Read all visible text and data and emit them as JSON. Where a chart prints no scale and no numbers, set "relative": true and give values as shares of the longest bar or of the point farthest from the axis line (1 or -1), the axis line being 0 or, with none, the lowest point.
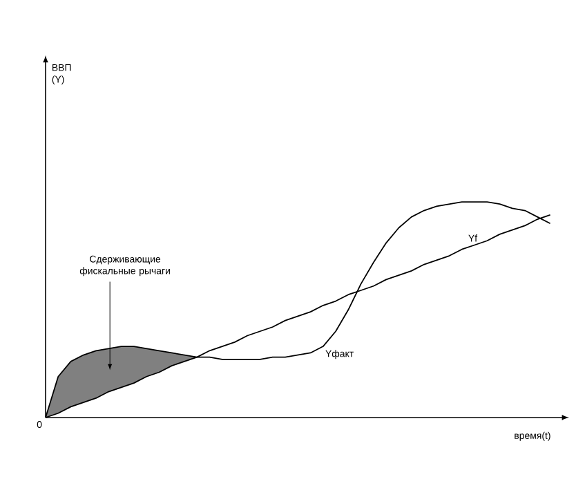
{
  "chart_data": {
    "type": "line",
    "relative": true,
    "xlabel": "время(t)",
    "categories": [
      null,
      null,
      null,
      null,
      null,
      null,
      null,
      null,
      null,
      null,
      null,
      null,
      null,
      null,
      null,
      null,
      null,
      null,
      null,
      null,
      null,
      null,
      null,
      null,
      null,
      null,
      null,
      null,
      null,
      null,
      null,
      null,
      null,
      null,
      null,
      null,
      null,
      null,
      null,
      null,
      null
    ],
    "series": [
      {
        "name": "Yf",
        "color": "#000000",
        "values": [
          0,
          0.02,
          0.05,
          0.07,
          0.09,
          0.12,
          0.14,
          0.16,
          0.19,
          0.21,
          0.24,
          0.26,
          0.28,
          0.31,
          0.33,
          0.35,
          0.38,
          0.4,
          0.42,
          0.45,
          0.47,
          0.49,
          0.52,
          0.54,
          0.57,
          0.59,
          0.61,
          0.64,
          0.66,
          0.68,
          0.71,
          0.73,
          0.75,
          0.78,
          0.8,
          0.82,
          0.85,
          0.87,
          0.89,
          0.92,
          0.94
        ]
      },
      {
        "name": "Yфакт",
        "color": "#000000",
        "values": [
          0,
          0.19,
          0.26,
          0.29,
          0.31,
          0.32,
          0.33,
          0.33,
          0.32,
          0.31,
          0.3,
          0.29,
          0.28,
          0.28,
          0.27,
          0.27,
          0.27,
          0.27,
          0.28,
          0.28,
          0.29,
          0.3,
          0.33,
          0.4,
          0.5,
          0.62,
          0.72,
          0.81,
          0.88,
          0.93,
          0.96,
          0.98,
          0.99,
          1.0,
          1.0,
          1.0,
          0.99,
          0.97,
          0.96,
          0.93,
          0.9
        ],
        "lower": [
          0,
          0.02,
          0.05,
          0.07,
          0.09,
          0.12,
          0.14,
          0.16,
          0.19,
          0.21,
          0.24,
          0.26,
          0.28,
          null,
          null,
          null,
          null,
          null,
          null,
          null,
          null,
          null,
          null,
          null,
          null,
          null,
          null,
          null,
          null,
          null,
          null,
          null,
          null,
          null,
          null,
          null,
          null,
          null,
          null,
          null,
          null
        ],
        "upper": [
          0,
          0.19,
          0.26,
          0.29,
          0.31,
          0.32,
          0.33,
          0.33,
          0.32,
          0.31,
          0.3,
          0.29,
          0.28,
          null,
          null,
          null,
          null,
          null,
          null,
          null,
          null,
          null,
          null,
          null,
          null,
          null,
          null,
          null,
          null,
          null,
          null,
          null,
          null,
          null,
          null,
          null,
          null,
          null,
          null,
          null,
          null
        ]
      }
    ],
    "annotations": [
      "0",
      "Сдерживающие фискальные рычаги",
      "ВВП (Y)"
    ],
    "legend": false,
    "marker": "none",
    "line_style": "solid"
  }
}
